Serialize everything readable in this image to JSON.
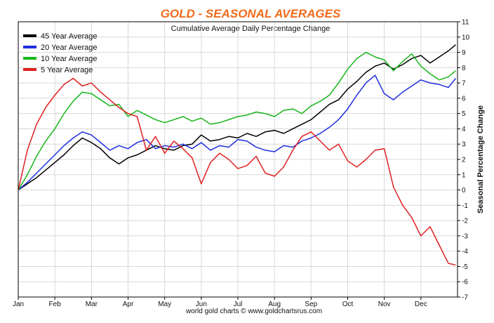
{
  "chart_data": {
    "type": "line",
    "title": "GOLD - SEASONAL AVERAGES",
    "subtitle": "Cumulative Average Daily Percentage Change",
    "ylabel": "Seasonal Percentage Change",
    "credit": "world gold charts © www.goldchartsrus.com",
    "x_ticks": [
      "Jan",
      "Feb",
      "Mar",
      "Apr",
      "May",
      "Jun",
      "Jul",
      "Aug",
      "Sep",
      "Oct",
      "Nov",
      "Dec"
    ],
    "y_ticks": [
      -7,
      -6,
      -5,
      -4,
      -3,
      -2,
      -1,
      0,
      1,
      2,
      3,
      4,
      5,
      6,
      7,
      8,
      9,
      10,
      11
    ],
    "ylim": [
      -7,
      11
    ],
    "xlim": [
      0,
      12
    ],
    "grid": true,
    "legend_position": "top-left",
    "colors": {
      "title": "#f26a1b",
      "grid": "#d8d8d8",
      "frame": "#000000"
    },
    "series": [
      {
        "name": "45 Year Average",
        "color": "#000000",
        "x": [
          0,
          0.25,
          0.5,
          0.75,
          1.0,
          1.25,
          1.5,
          1.75,
          2.0,
          2.25,
          2.5,
          2.75,
          3.0,
          3.25,
          3.5,
          3.75,
          4.0,
          4.25,
          4.5,
          4.75,
          5.0,
          5.25,
          5.5,
          5.75,
          6.0,
          6.25,
          6.5,
          6.75,
          7.0,
          7.25,
          7.5,
          7.75,
          8.0,
          8.25,
          8.5,
          8.75,
          9.0,
          9.25,
          9.5,
          9.75,
          10.0,
          10.25,
          10.5,
          10.75,
          11.0,
          11.25,
          11.5,
          11.75,
          11.95
        ],
        "values": [
          0,
          0.4,
          0.8,
          1.3,
          1.8,
          2.3,
          2.9,
          3.4,
          3.1,
          2.7,
          2.1,
          1.7,
          2.1,
          2.3,
          2.6,
          2.9,
          2.7,
          2.6,
          2.9,
          3.0,
          3.6,
          3.2,
          3.3,
          3.5,
          3.4,
          3.7,
          3.5,
          3.8,
          3.9,
          3.7,
          4.0,
          4.3,
          4.6,
          5.1,
          5.6,
          5.9,
          6.6,
          7.1,
          7.7,
          8.1,
          8.3,
          7.9,
          8.2,
          8.6,
          8.8,
          8.3,
          8.7,
          9.1,
          9.5
        ]
      },
      {
        "name": "20 Year Average",
        "color": "#1f2de0",
        "x": [
          0,
          0.25,
          0.5,
          0.75,
          1.0,
          1.25,
          1.5,
          1.75,
          2.0,
          2.25,
          2.5,
          2.75,
          3.0,
          3.25,
          3.5,
          3.75,
          4.0,
          4.25,
          4.5,
          4.75,
          5.0,
          5.25,
          5.5,
          5.75,
          6.0,
          6.25,
          6.5,
          6.75,
          7.0,
          7.25,
          7.5,
          7.75,
          8.0,
          8.25,
          8.5,
          8.75,
          9.0,
          9.25,
          9.5,
          9.75,
          10.0,
          10.25,
          10.5,
          10.75,
          11.0,
          11.25,
          11.5,
          11.75,
          11.95
        ],
        "values": [
          0,
          0.5,
          1.1,
          1.7,
          2.3,
          2.9,
          3.4,
          3.8,
          3.6,
          3.1,
          2.6,
          2.9,
          2.7,
          3.1,
          3.3,
          2.7,
          2.9,
          2.8,
          3.0,
          2.7,
          3.1,
          2.6,
          2.9,
          2.8,
          3.3,
          3.2,
          2.8,
          2.6,
          2.5,
          2.9,
          2.8,
          3.2,
          3.4,
          3.7,
          4.1,
          4.6,
          5.3,
          6.2,
          7.0,
          7.5,
          6.3,
          5.9,
          6.4,
          6.8,
          7.2,
          7.0,
          6.9,
          6.7,
          7.3
        ]
      },
      {
        "name": "10 Year Average",
        "color": "#17b51a",
        "x": [
          0,
          0.25,
          0.5,
          0.75,
          1.0,
          1.25,
          1.5,
          1.75,
          2.0,
          2.25,
          2.5,
          2.75,
          3.0,
          3.25,
          3.5,
          3.75,
          4.0,
          4.25,
          4.5,
          4.75,
          5.0,
          5.25,
          5.5,
          5.75,
          6.0,
          6.25,
          6.5,
          6.75,
          7.0,
          7.25,
          7.5,
          7.75,
          8.0,
          8.25,
          8.5,
          8.75,
          9.0,
          9.25,
          9.5,
          9.75,
          10.0,
          10.25,
          10.5,
          10.75,
          11.0,
          11.25,
          11.5,
          11.75,
          11.95
        ],
        "values": [
          0,
          1.0,
          2.2,
          3.2,
          4.0,
          5.0,
          5.8,
          6.4,
          6.3,
          5.9,
          5.5,
          5.6,
          4.8,
          5.2,
          4.9,
          4.6,
          4.4,
          4.6,
          4.8,
          4.5,
          4.7,
          4.3,
          4.4,
          4.6,
          4.8,
          4.9,
          5.1,
          5.0,
          4.8,
          5.2,
          5.3,
          5.0,
          5.5,
          5.8,
          6.2,
          7.0,
          7.9,
          8.6,
          9.0,
          8.7,
          8.5,
          7.8,
          8.4,
          8.9,
          8.1,
          7.6,
          7.2,
          7.4,
          7.8
        ]
      },
      {
        "name": "5 Year Average",
        "color": "#e02020",
        "x": [
          0,
          0.25,
          0.5,
          0.75,
          1.0,
          1.25,
          1.5,
          1.75,
          2.0,
          2.25,
          2.5,
          2.75,
          3.0,
          3.25,
          3.5,
          3.75,
          4.0,
          4.25,
          4.5,
          4.75,
          5.0,
          5.25,
          5.5,
          5.75,
          6.0,
          6.25,
          6.5,
          6.75,
          7.0,
          7.25,
          7.5,
          7.75,
          8.0,
          8.25,
          8.5,
          8.75,
          9.0,
          9.25,
          9.5,
          9.75,
          10.0,
          10.25,
          10.5,
          10.75,
          11.0,
          11.25,
          11.5,
          11.75,
          11.95
        ],
        "values": [
          0,
          2.6,
          4.3,
          5.4,
          6.2,
          6.9,
          7.3,
          6.8,
          7.0,
          6.4,
          5.9,
          5.4,
          5.0,
          4.8,
          2.6,
          3.5,
          2.4,
          3.2,
          2.7,
          2.1,
          0.4,
          1.8,
          2.4,
          2.0,
          1.4,
          1.6,
          2.2,
          1.1,
          0.9,
          1.5,
          2.6,
          3.5,
          3.8,
          3.2,
          2.6,
          3.0,
          1.9,
          1.5,
          2.0,
          2.6,
          2.7,
          0.2,
          -1.0,
          -1.8,
          -3.0,
          -2.4,
          -3.6,
          -4.8,
          -4.9
        ]
      }
    ]
  }
}
